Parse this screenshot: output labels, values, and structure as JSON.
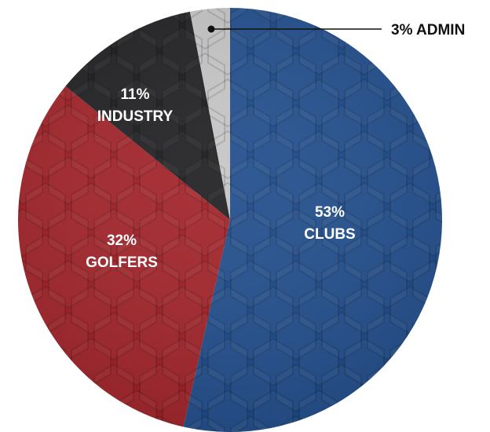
{
  "chart_data": {
    "type": "pie",
    "start": "top",
    "direction": "clockwise",
    "slices": [
      {
        "name": "CLUBS",
        "percent_label": "53%",
        "value": 53,
        "color": "#1c4a8a"
      },
      {
        "name": "GOLFERS",
        "percent_label": "32%",
        "value": 32,
        "color": "#a01e24"
      },
      {
        "name": "INDUSTRY",
        "percent_label": "11%",
        "value": 11,
        "color": "#1b1b1d"
      },
      {
        "name": "ADMIN",
        "percent_label": "3%",
        "value": 3,
        "color": "#c4c4c4"
      }
    ],
    "callout": {
      "slice": "ADMIN",
      "text": "3% ADMIN"
    }
  }
}
